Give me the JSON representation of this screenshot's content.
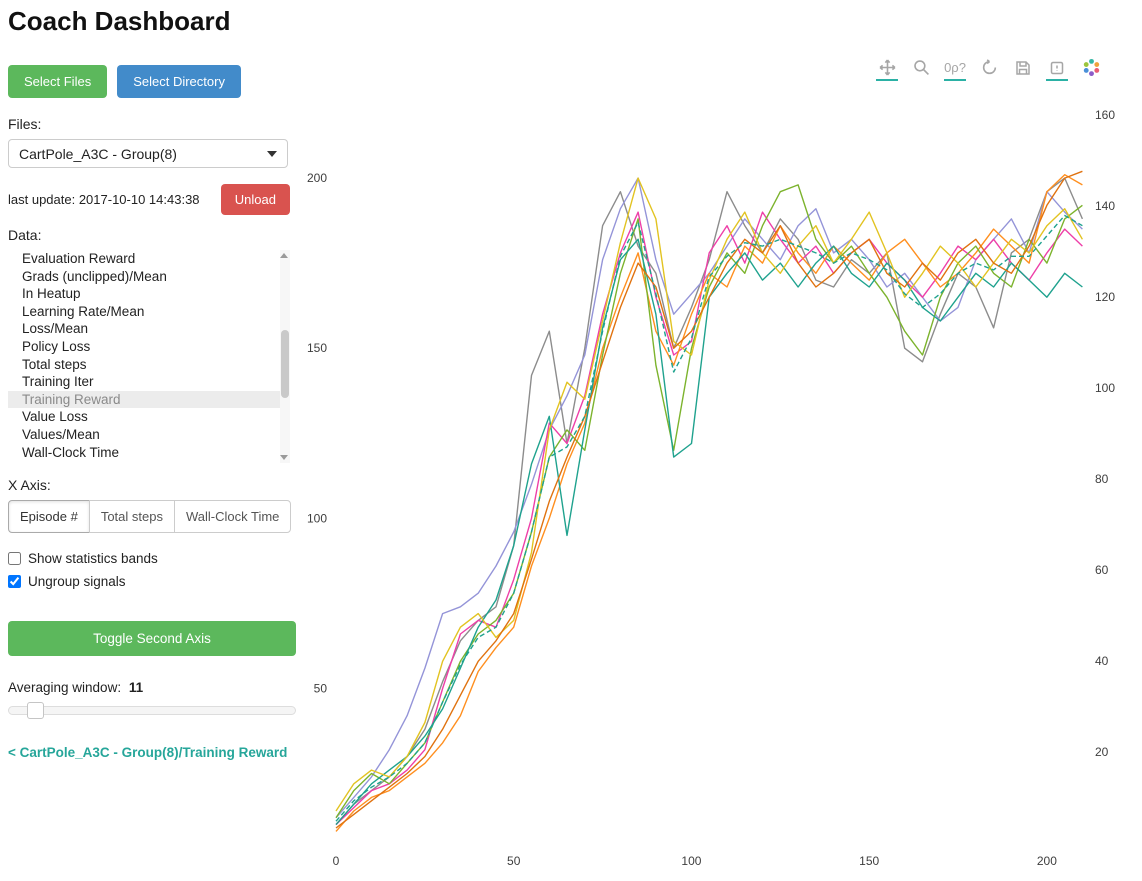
{
  "header": {
    "title": "Coach Dashboard"
  },
  "sidebar": {
    "select_files_label": "Select Files",
    "select_directory_label": "Select Directory",
    "files_label": "Files:",
    "files_selected": "CartPole_A3C - Group(8)",
    "last_update": "last update: 2017-10-10 14:43:38",
    "unload_label": "Unload",
    "data_label": "Data:",
    "data_items": [
      "Evaluation Reward",
      "Grads (unclipped)/Mean",
      "In Heatup",
      "Learning Rate/Mean",
      "Loss/Mean",
      "Policy Loss",
      "Total steps",
      "Training Iter",
      "Training Reward",
      "Value Loss",
      "Values/Mean",
      "Wall-Clock Time"
    ],
    "data_selected": "Training Reward",
    "x_axis_label": "X Axis:",
    "x_axis_options": [
      "Episode #",
      "Total steps",
      "Wall-Clock Time"
    ],
    "x_axis_selected": "Episode #",
    "show_statistics_bands": {
      "label": "Show statistics bands",
      "checked": false
    },
    "ungroup_signals": {
      "label": "Ungroup signals",
      "checked": true
    },
    "toggle_second_axis_label": "Toggle Second Axis",
    "averaging_window_label": "Averaging window:",
    "averaging_window_value": "11",
    "breadcrumb_link": "< CartPole_A3C - Group(8)/Training Reward"
  },
  "toolbar": {
    "wheel_zoom_glyph": "0ρ?",
    "icons": [
      {
        "name": "pan",
        "active": true
      },
      {
        "name": "box-zoom",
        "active": false
      },
      {
        "name": "wheel-zoom",
        "active": true
      },
      {
        "name": "reset",
        "active": false
      },
      {
        "name": "save",
        "active": false
      },
      {
        "name": "hover",
        "active": true
      },
      {
        "name": "bokeh-logo",
        "active": false
      }
    ]
  },
  "chart_data": {
    "type": "line",
    "title": "",
    "xlabel": "",
    "ylabel": "",
    "legend": "none",
    "grid": false,
    "x_start": 0,
    "x_step": 5,
    "x_ticks": [
      0,
      50,
      100,
      150,
      200
    ],
    "y_left_ticks": [
      50,
      100,
      150,
      200
    ],
    "y_right_ticks": [
      20,
      40,
      60,
      80,
      100,
      120,
      140,
      160
    ],
    "x_range": [
      0,
      211
    ],
    "y_left_range": [
      4,
      225
    ],
    "y_right_range": [
      -0.4,
      164.8
    ],
    "series": [
      {
        "name": "agent_0",
        "color": "#8c8c8c",
        "dash": false,
        "values": [
          10,
          16,
          20,
          24,
          30,
          38,
          52,
          64,
          70,
          74,
          92,
          142,
          155,
          122,
          150,
          186,
          196,
          180,
          172,
          150,
          162,
          176,
          196,
          186,
          178,
          188,
          182,
          170,
          168,
          176,
          172,
          178,
          150,
          146,
          160,
          172,
          168,
          156,
          178,
          182,
          196,
          200,
          188
        ]
      },
      {
        "name": "agent_1",
        "color": "#9494d8",
        "dash": false,
        "values": [
          12,
          18,
          24,
          32,
          42,
          56,
          72,
          74,
          78,
          86,
          96,
          110,
          126,
          136,
          148,
          176,
          191,
          200,
          176,
          160,
          166,
          172,
          180,
          188,
          182,
          176,
          186,
          191,
          178,
          182,
          176,
          168,
          172,
          165,
          158,
          162,
          176,
          182,
          188,
          178,
          196,
          190,
          185
        ]
      },
      {
        "name": "agent_2",
        "color": "#ee3fa8",
        "dash": false,
        "values": [
          10,
          15,
          20,
          22,
          26,
          32,
          50,
          66,
          70,
          68,
          82,
          100,
          128,
          122,
          136,
          160,
          178,
          190,
          165,
          148,
          152,
          178,
          186,
          175,
          190,
          182,
          175,
          180,
          172,
          178,
          182,
          175,
          170,
          165,
          172,
          180,
          176,
          182,
          175,
          170,
          178,
          185,
          180
        ]
      },
      {
        "name": "agent_3",
        "color": "#ff8f1f",
        "dash": false,
        "values": [
          8,
          14,
          18,
          20,
          24,
          28,
          34,
          42,
          55,
          62,
          68,
          86,
          100,
          116,
          128,
          150,
          165,
          178,
          155,
          145,
          160,
          172,
          168,
          180,
          175,
          186,
          178,
          172,
          180,
          175,
          170,
          178,
          182,
          175,
          168,
          172,
          178,
          185,
          180,
          175,
          196,
          201,
          198
        ]
      },
      {
        "name": "agent_4",
        "color": "#7cb32d",
        "dash": false,
        "values": [
          12,
          20,
          25,
          22,
          28,
          34,
          46,
          58,
          66,
          70,
          78,
          96,
          118,
          126,
          120,
          148,
          172,
          188,
          145,
          120,
          150,
          168,
          178,
          172,
          186,
          196,
          198,
          182,
          175,
          180,
          172,
          165,
          155,
          148,
          165,
          175,
          180,
          172,
          168,
          182,
          175,
          188,
          192
        ]
      },
      {
        "name": "agent_5",
        "color": "#1fa28e",
        "dash": false,
        "values": [
          10,
          16,
          22,
          26,
          30,
          36,
          44,
          56,
          68,
          76,
          92,
          116,
          130,
          95,
          126,
          156,
          176,
          182,
          160,
          118,
          122,
          165,
          172,
          178,
          170,
          175,
          168,
          175,
          180,
          172,
          168,
          175,
          170,
          162,
          158,
          165,
          172,
          168,
          175,
          170,
          165,
          172,
          168
        ]
      },
      {
        "name": "agent_6",
        "color": "#e2c321",
        "dash": false,
        "values": [
          14,
          22,
          26,
          24,
          30,
          40,
          58,
          68,
          72,
          65,
          70,
          90,
          126,
          140,
          135,
          158,
          181,
          200,
          188,
          152,
          148,
          170,
          182,
          190,
          178,
          172,
          180,
          186,
          175,
          182,
          190,
          178,
          165,
          172,
          180,
          175,
          168,
          175,
          182,
          178,
          186,
          191,
          182
        ]
      },
      {
        "name": "agent_7",
        "color": "#e0720f",
        "dash": false,
        "values": [
          9,
          13,
          17,
          21,
          25,
          30,
          38,
          48,
          58,
          64,
          72,
          88,
          105,
          118,
          130,
          146,
          162,
          175,
          168,
          150,
          155,
          165,
          175,
          182,
          178,
          186,
          175,
          168,
          172,
          178,
          182,
          172,
          168,
          175,
          170,
          178,
          182,
          175,
          172,
          180,
          192,
          200,
          202
        ]
      },
      {
        "name": "mean",
        "color": "#1fa28e",
        "dash": true,
        "values": [
          11,
          17,
          21,
          24,
          28,
          34,
          46,
          57,
          65,
          68,
          78,
          96,
          118,
          121,
          130,
          155,
          177,
          187,
          166,
          143,
          153,
          171,
          177,
          181,
          180,
          182,
          180,
          178,
          175,
          178,
          176,
          173,
          166,
          162,
          166,
          172,
          175,
          173,
          177,
          177,
          183,
          189,
          186
        ]
      }
    ]
  }
}
